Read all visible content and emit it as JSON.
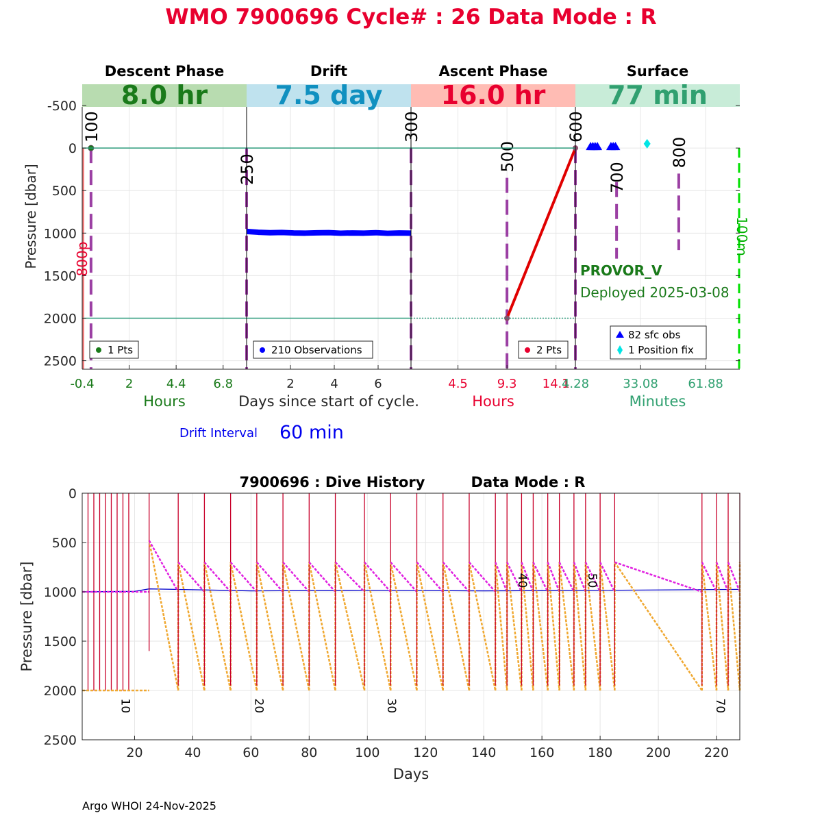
{
  "page_title": "WMO 7900696   Cycle# : 26   Data Mode : R",
  "colors": {
    "title": "#e8002f",
    "descent": "#1a7a1a",
    "drift": "#1090c0",
    "ascent": "#e8002f",
    "surface": "#30a070",
    "descent_band": "#b8dcb0",
    "drift_band": "#bfe2ee",
    "ascent_band": "#ffbcb4",
    "surface_band": "#c8ecd8",
    "obs_blue": "#0000ff",
    "cycle_marker": "#9b3fa3",
    "history_red": "#c8002a",
    "history_orange": "#f0a830",
    "history_magenta": "#e020e0",
    "history_drift": "#0000cc",
    "ref_line": "#2a9a7a",
    "surface_dash": "#00e000"
  },
  "chart_data": [
    {
      "type": "scatter",
      "panel": "cycle",
      "ylabel": "Pressure [dbar]",
      "ylim": [
        2600,
        -750
      ],
      "yticks": [
        -500,
        0,
        500,
        1000,
        1500,
        2000,
        2500
      ],
      "center_xlabel": "Days since start of cycle.",
      "reference_lines": [
        0,
        2000
      ],
      "left_annotation": "800p",
      "right_annotation": "100m",
      "float_model": "PROVOR_V",
      "deployed": "Deployed 2025-03-08",
      "drift_interval_label": "Drift Interval",
      "drift_interval_value": "60 min",
      "phases": [
        {
          "name": "Descent Phase",
          "band_value": "8.0 hr",
          "axis_label": "Hours",
          "xlim": [
            -0.4,
            8.0
          ],
          "ticks": [
            "-0.4",
            "2",
            "4.4",
            "6.8"
          ],
          "tick_values": [
            -0.4,
            2,
            4.4,
            6.8
          ],
          "legend": "1 Pts",
          "points": [
            {
              "x": 0.05,
              "y": 0
            }
          ],
          "markers": [
            {
              "label": "100",
              "x": 0.05,
              "y_top": 0,
              "y_bottom": 2600
            }
          ]
        },
        {
          "name": "Drift",
          "band_value": "7.5 day",
          "axis_label": "",
          "xlim": [
            0,
            7.5
          ],
          "ticks": [
            "2",
            "4",
            "6"
          ],
          "tick_values": [
            2,
            4,
            6
          ],
          "legend": "210 Observations",
          "drift_pressure": [
            980,
            990,
            995,
            992,
            998,
            1000,
            996,
            994,
            1001,
            998,
            1000,
            995,
            1002,
            998,
            1000
          ],
          "markers": [
            {
              "label": "250",
              "x": 0.0,
              "y_top": 0,
              "y_bottom": 2600
            }
          ]
        },
        {
          "name": "Ascent Phase",
          "band_value": "16.0 hr",
          "axis_label": "Hours",
          "xlim": [
            -0.1,
            16.0
          ],
          "ticks": [
            "4.5",
            "9.3",
            "14.1"
          ],
          "tick_values": [
            4.5,
            9.3,
            14.1
          ],
          "legend": "2 Pts",
          "ascent_line": [
            {
              "x": 9.3,
              "y": 2000
            },
            {
              "x": 16.0,
              "y": 0
            }
          ],
          "markers": [
            {
              "label": "300",
              "x": -0.1,
              "y_top": 0,
              "y_bottom": 2600
            },
            {
              "label": "500",
              "x": 9.3,
              "y_top": 350,
              "y_bottom": 2600
            },
            {
              "label": "600",
              "x": 16.0,
              "y_top": 0,
              "y_bottom": 2600
            }
          ]
        },
        {
          "name": "Surface",
          "band_value": "77 min",
          "axis_label": "Minutes",
          "xlim": [
            4.28,
            77.0
          ],
          "ticks": [
            "4.28",
            "33.08",
            "61.88"
          ],
          "tick_values": [
            4.28,
            33.08,
            61.88
          ],
          "legend": [
            "82 sfc obs",
            "1 Position fix"
          ],
          "sfc_obs_x": [
            11,
            12,
            13,
            14,
            20,
            21,
            22
          ],
          "position_fix": {
            "x": 36,
            "y": -50
          },
          "markers": [
            {
              "label": "700",
              "x": 22.5,
              "y_top": 400,
              "y_bottom": 1300
            },
            {
              "label": "800",
              "x": 50,
              "y_top": 300,
              "y_bottom": 1200
            }
          ],
          "surface_dash_x": 77
        }
      ]
    },
    {
      "type": "line",
      "panel": "history",
      "title": "7900696 : Dive History",
      "data_mode": "Data Mode : R",
      "xlabel": "Days",
      "ylabel": "Pressure [dbar]",
      "xlim": [
        2,
        228
      ],
      "ylim": [
        2500,
        0
      ],
      "xticks": [
        20,
        40,
        60,
        80,
        100,
        120,
        140,
        160,
        180,
        200,
        220
      ],
      "yticks": [
        0,
        500,
        1000,
        1500,
        2000,
        2500
      ],
      "cycle_labels": [
        {
          "label": "10",
          "x": 15.5,
          "y": 2080
        },
        {
          "label": "20",
          "x": 61.5,
          "y": 2080
        },
        {
          "label": "30",
          "x": 107,
          "y": 2080
        },
        {
          "label": "40",
          "x": 152,
          "y": 810
        },
        {
          "label": "50",
          "x": 176,
          "y": 810
        },
        {
          "label": "70",
          "x": 220,
          "y": 2080
        }
      ],
      "early_profiles_x": [
        4,
        6,
        8,
        10,
        12,
        14,
        16,
        18
      ],
      "profiles": [
        25,
        35,
        44,
        53,
        62,
        71,
        80,
        89,
        99,
        108,
        117,
        126,
        135,
        144,
        148,
        153,
        157,
        162,
        166,
        171,
        175,
        180,
        185,
        215,
        220,
        224,
        228
      ],
      "drift_line": [
        {
          "x": 2,
          "y": 1000
        },
        {
          "x": 20,
          "y": 995
        },
        {
          "x": 25,
          "y": 970
        },
        {
          "x": 60,
          "y": 990
        },
        {
          "x": 100,
          "y": 985
        },
        {
          "x": 140,
          "y": 990
        },
        {
          "x": 180,
          "y": 985
        },
        {
          "x": 228,
          "y": 975
        }
      ]
    }
  ],
  "footer": "Argo WHOI 24-Nov-2025"
}
